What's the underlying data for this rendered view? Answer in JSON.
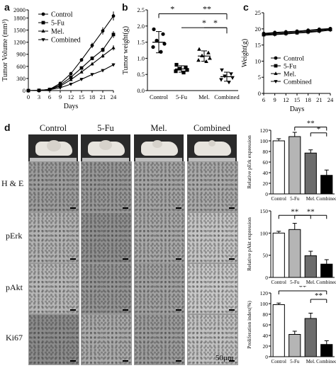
{
  "panels": {
    "a": {
      "letter": "a"
    },
    "b": {
      "letter": "b"
    },
    "c": {
      "letter": "c"
    },
    "d": {
      "letter": "d"
    }
  },
  "legend_labels": [
    "Control",
    "5-Fu",
    "Mel.",
    "Combined"
  ],
  "section_d": {
    "columns": [
      "Control",
      "5-Fu",
      "Mel.",
      "Combined"
    ],
    "rows": [
      "H & E",
      "pErk",
      "pAkt",
      "Ki67"
    ],
    "scale_label": "50μm"
  },
  "chart_data": [
    {
      "panel": "a",
      "type": "line",
      "xlabel": "Days",
      "ylabel": "Tumor Volume (mm³)",
      "x": [
        0,
        3,
        6,
        9,
        12,
        15,
        18,
        21,
        24
      ],
      "ylim": [
        0,
        2000
      ],
      "yticks": [
        0,
        300,
        600,
        900,
        1200,
        1500,
        1800,
        2000
      ],
      "series": [
        {
          "name": "Control",
          "marker": "circle",
          "values": [
            0,
            5,
            30,
            180,
            420,
            760,
            1120,
            1480,
            1850
          ]
        },
        {
          "name": "5-Fu",
          "marker": "square",
          "values": [
            0,
            5,
            28,
            140,
            330,
            560,
            800,
            1010,
            1390
          ]
        },
        {
          "name": "Mel.",
          "marker": "triangle-up",
          "values": [
            0,
            5,
            25,
            110,
            270,
            460,
            660,
            860,
            1060
          ]
        },
        {
          "name": "Combined",
          "marker": "triangle-down",
          "values": [
            0,
            5,
            20,
            70,
            160,
            280,
            400,
            500,
            640
          ]
        }
      ]
    },
    {
      "panel": "b",
      "type": "scatter",
      "ylabel": "Tumor weight(g)",
      "categories": [
        "Control",
        "5-Fu",
        "Mel.",
        "Combined"
      ],
      "ylim": [
        0.0,
        2.5
      ],
      "yticks": [
        0.0,
        0.5,
        1.0,
        1.5,
        2.0,
        2.5
      ],
      "groups": [
        {
          "name": "Control",
          "marker": "circle",
          "mean": 1.5,
          "sd": 0.33,
          "points": [
            1.9,
            1.75,
            1.55,
            1.45,
            1.35,
            1.2
          ]
        },
        {
          "name": "5-Fu",
          "marker": "square",
          "mean": 0.67,
          "sd": 0.1,
          "points": [
            0.8,
            0.72,
            0.68,
            0.64,
            0.6,
            0.56
          ]
        },
        {
          "name": "Mel.",
          "marker": "triangle-up",
          "mean": 1.07,
          "sd": 0.16,
          "points": [
            1.28,
            1.17,
            1.08,
            1.0,
            0.94,
            0.9
          ]
        },
        {
          "name": "Combined",
          "marker": "triangle-down",
          "mean": 0.43,
          "sd": 0.14,
          "points": [
            0.64,
            0.52,
            0.45,
            0.4,
            0.34,
            0.26
          ]
        }
      ],
      "significance": [
        {
          "from": "Control",
          "to": "Combined",
          "label": "**"
        },
        {
          "from": "5-Fu",
          "to": "Combined",
          "label": "*"
        },
        {
          "from": "Mel.",
          "to": "Combined",
          "label": "*"
        }
      ]
    },
    {
      "panel": "c",
      "type": "line",
      "xlabel": "Days",
      "ylabel": "Weight(g)",
      "x": [
        6,
        9,
        12,
        15,
        18,
        21,
        24
      ],
      "ylim": [
        0,
        25
      ],
      "yticks": [
        0,
        5,
        10,
        15,
        20,
        25
      ],
      "legend": "bottom",
      "series": [
        {
          "name": "Control",
          "marker": "circle",
          "values": [
            18.6,
            18.9,
            19.1,
            19.3,
            19.6,
            19.9,
            20.1
          ]
        },
        {
          "name": "5-Fu",
          "marker": "square",
          "values": [
            18.2,
            18.4,
            18.6,
            18.8,
            19.1,
            19.4,
            19.8
          ]
        },
        {
          "name": "Mel.",
          "marker": "triangle-up",
          "values": [
            18.4,
            18.7,
            18.9,
            19.1,
            19.4,
            19.7,
            20.0
          ]
        },
        {
          "name": "Combined",
          "marker": "triangle-down",
          "values": [
            18.0,
            18.2,
            18.4,
            18.7,
            18.9,
            19.2,
            19.6
          ]
        }
      ]
    },
    {
      "panel": "d-perk",
      "type": "bar",
      "ylabel": "Relative pErk expression",
      "categories": [
        "Control",
        "5-Fu",
        "Mel.",
        "Combined"
      ],
      "values": [
        100,
        108,
        77,
        35
      ],
      "errors": [
        4,
        8,
        6,
        10
      ],
      "colors": [
        "#ffffff",
        "#b5b5b5",
        "#6c6c6c",
        "#000000"
      ],
      "ylim": [
        0,
        120
      ],
      "yticks": [
        0,
        20,
        40,
        60,
        80,
        100,
        120
      ],
      "significance": [
        {
          "from": "5-Fu",
          "to": "Combined",
          "label": "**"
        },
        {
          "from": "Mel.",
          "to": "Combined",
          "label": "*"
        }
      ]
    },
    {
      "panel": "d-pakt",
      "type": "bar",
      "ylabel": "Relative pAkt expression",
      "categories": [
        "Control",
        "5-Fu",
        "Mel.",
        "Combined"
      ],
      "values": [
        100,
        108,
        49,
        30
      ],
      "errors": [
        4,
        14,
        10,
        10
      ],
      "colors": [
        "#ffffff",
        "#b5b5b5",
        "#6c6c6c",
        "#000000"
      ],
      "ylim": [
        0,
        150
      ],
      "yticks": [
        0,
        50,
        100,
        150
      ],
      "significance": [
        {
          "from": "Control",
          "to": "Mel.",
          "label": "**"
        },
        {
          "from": "5-Fu",
          "to": "Combined",
          "label": "**"
        }
      ]
    },
    {
      "panel": "d-ki67",
      "type": "bar",
      "ylabel": "Proliferation index(%)",
      "categories": [
        "Control",
        "5-Fu",
        "Mel.",
        "Combined"
      ],
      "values": [
        98,
        42,
        72,
        23
      ],
      "errors": [
        3,
        6,
        10,
        7
      ],
      "colors": [
        "#ffffff",
        "#b5b5b5",
        "#6c6c6c",
        "#000000"
      ],
      "ylim": [
        0,
        120
      ],
      "yticks": [
        0,
        20,
        40,
        60,
        80,
        100,
        120
      ],
      "significance": [
        {
          "from": "Control",
          "to": "Combined",
          "label": "**"
        },
        {
          "from": "Mel.",
          "to": "Combined",
          "label": "**"
        }
      ]
    }
  ]
}
